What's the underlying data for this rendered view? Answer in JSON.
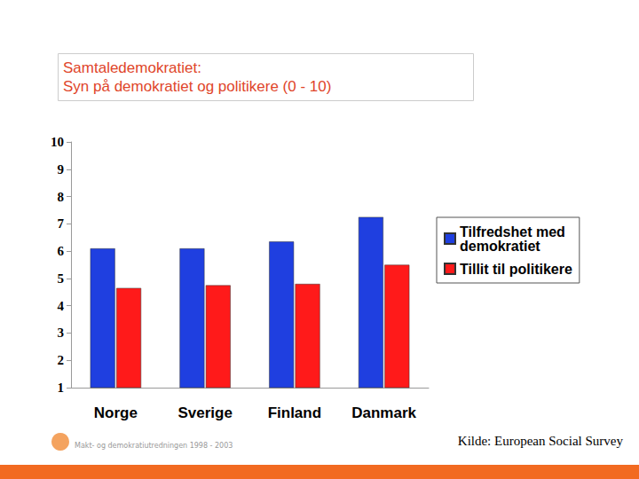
{
  "chart_data": {
    "type": "bar",
    "title": "Samtaledemokratiet:\nSyn på demokratiet og politikere (0 - 10)",
    "categories": [
      "Norge",
      "Sverige",
      "Finland",
      "Danmark"
    ],
    "series": [
      {
        "name": "Tilfredshet med demokratiet",
        "color": "#1f3fe0",
        "values": [
          6.1,
          6.1,
          6.35,
          7.25
        ]
      },
      {
        "name": "Tillit til politikere",
        "color": "#ff1a1a",
        "values": [
          4.65,
          4.75,
          4.8,
          5.5
        ]
      }
    ],
    "ylim": [
      1,
      10
    ],
    "yticks": [
      1,
      2,
      3,
      4,
      5,
      6,
      7,
      8,
      9,
      10
    ],
    "grid": false,
    "legend": "right",
    "annotations": [
      "Kilde: European Social Survey",
      "Makt- og demokratiutredningen 1998 - 2003"
    ]
  }
}
